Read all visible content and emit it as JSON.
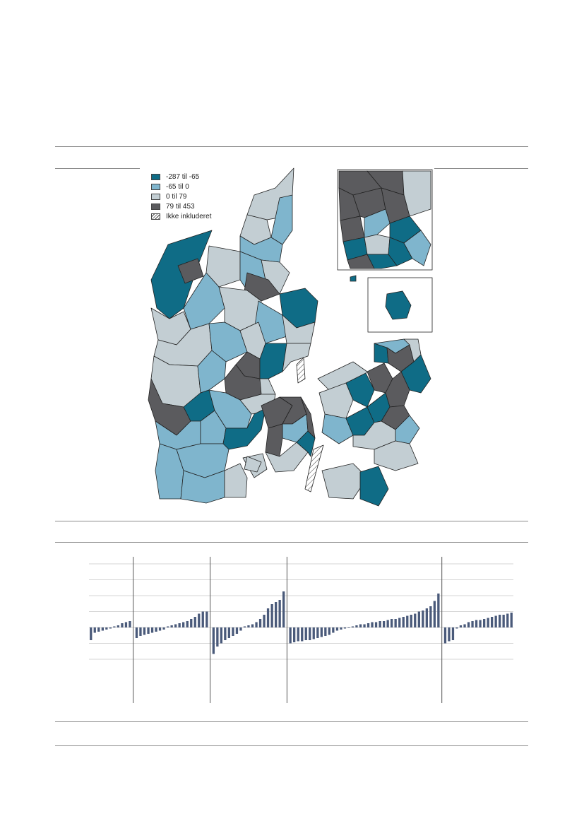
{
  "map_legend": {
    "items": [
      {
        "label": "-287 til -65",
        "color": "#0f6c86"
      },
      {
        "label": "-65 til 0",
        "color": "#7fb5cd"
      },
      {
        "label": "0 til 79",
        "color": "#c3ced3"
      },
      {
        "label": "79 til 453",
        "color": "#5b5b5e"
      },
      {
        "label": "Ikke inkluderet",
        "color": "hatch"
      }
    ]
  },
  "chart_data": {
    "type": "bar",
    "grid": true,
    "bar_color": "#4a5a7a",
    "groups": [
      {
        "values": [
          -12,
          -5,
          -4,
          -3,
          -2,
          -1,
          1,
          2,
          4,
          5,
          6
        ]
      },
      {
        "values": [
          -10,
          -8,
          -7,
          -6,
          -5,
          -4,
          -3,
          -2,
          1,
          2,
          3,
          4,
          5,
          6,
          8,
          10,
          13,
          15,
          15
        ]
      },
      {
        "values": [
          -25,
          -18,
          -15,
          -12,
          -10,
          -8,
          -6,
          -3,
          1,
          2,
          3,
          5,
          8,
          12,
          18,
          22,
          24,
          26,
          34
        ]
      },
      {
        "values": [
          -15,
          -14,
          -13,
          -13,
          -12,
          -12,
          -11,
          -10,
          -9,
          -8,
          -7,
          -5,
          -3,
          -2,
          -1,
          0,
          1,
          2,
          3,
          3,
          4,
          5,
          5,
          6,
          6,
          7,
          8,
          8,
          9,
          10,
          11,
          12,
          13,
          15,
          16,
          18,
          20,
          25,
          32
        ]
      },
      {
        "values": [
          -15,
          -13,
          -12,
          -1,
          2,
          3,
          5,
          6,
          7,
          7,
          8,
          9,
          10,
          11,
          12,
          12,
          13,
          14
        ]
      }
    ]
  }
}
